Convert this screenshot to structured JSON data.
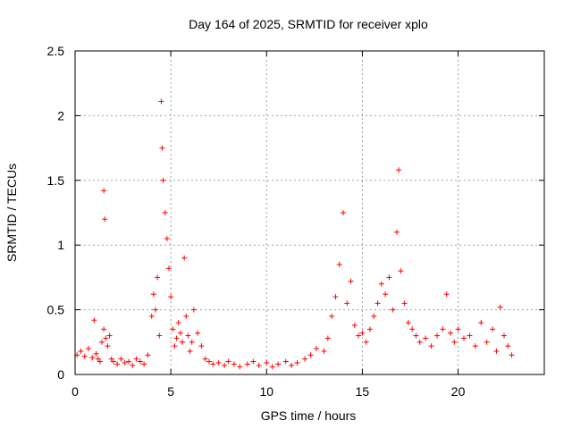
{
  "chart_data": {
    "type": "scatter",
    "title": "Day 164 of 2025, SRMTID for receiver xplo",
    "xlabel": "GPS time / hours",
    "ylabel": "SRMTID / TECUs",
    "xlim": [
      0,
      24.5
    ],
    "ylim": [
      0,
      2.5
    ],
    "xticks": [
      0,
      5,
      10,
      15,
      20
    ],
    "xtick_labels": [
      "0",
      "5",
      "10",
      "15",
      "20"
    ],
    "yticks": [
      0,
      0.5,
      1,
      1.5,
      2,
      2.5
    ],
    "ytick_labels": [
      "0",
      "0.5",
      "1",
      "1.5",
      "2",
      "2.5"
    ],
    "grid": true,
    "marker": "+",
    "series": [
      {
        "name": "SRMTID",
        "color": "#ff0000",
        "x": [
          0.1,
          0.3,
          0.5,
          0.7,
          0.9,
          1.0,
          1.1,
          1.2,
          1.3,
          1.4,
          1.5,
          1.5,
          1.55,
          1.6,
          1.7,
          1.8,
          1.9,
          2.0,
          2.2,
          2.4,
          2.6,
          2.8,
          3.0,
          3.2,
          3.4,
          3.6,
          3.8,
          4.0,
          4.1,
          4.2,
          4.3,
          4.4,
          4.5,
          4.55,
          4.6,
          4.7,
          4.8,
          4.9,
          5.0,
          5.1,
          5.2,
          5.3,
          5.4,
          5.5,
          5.6,
          5.7,
          5.8,
          5.9,
          6.0,
          6.1,
          6.2,
          6.4,
          6.6,
          6.8,
          7.0,
          7.2,
          7.5,
          7.8,
          8.0,
          8.3,
          8.6,
          9.0,
          9.3,
          9.6,
          10.0,
          10.3,
          10.6,
          11.0,
          11.3,
          11.6,
          12.0,
          12.3,
          12.6,
          13.0,
          13.2,
          13.4,
          13.6,
          13.8,
          14.0,
          14.2,
          14.4,
          14.6,
          14.8,
          15.0,
          15.2,
          15.4,
          15.6,
          15.8,
          16.0,
          16.2,
          16.4,
          16.6,
          16.8,
          16.9,
          17.0,
          17.2,
          17.4,
          17.6,
          17.8,
          18.0,
          18.3,
          18.6,
          18.9,
          19.2,
          19.4,
          19.6,
          19.8,
          20.0,
          20.3,
          20.6,
          20.9,
          21.2,
          21.5,
          21.8,
          22.0,
          22.2,
          22.4,
          22.6,
          22.8
        ],
        "y": [
          0.15,
          0.18,
          0.14,
          0.2,
          0.13,
          0.42,
          0.16,
          0.12,
          0.1,
          0.25,
          1.42,
          0.35,
          1.2,
          0.28,
          0.22,
          0.3,
          0.12,
          0.1,
          0.08,
          0.12,
          0.09,
          0.1,
          0.07,
          0.12,
          0.1,
          0.08,
          0.15,
          0.45,
          0.62,
          0.5,
          0.75,
          0.3,
          2.11,
          1.75,
          1.5,
          1.25,
          1.05,
          0.82,
          0.6,
          0.35,
          0.22,
          0.28,
          0.4,
          0.32,
          0.25,
          0.9,
          0.45,
          0.3,
          0.18,
          0.25,
          0.5,
          0.32,
          0.22,
          0.12,
          0.1,
          0.08,
          0.09,
          0.07,
          0.1,
          0.08,
          0.06,
          0.08,
          0.1,
          0.07,
          0.09,
          0.06,
          0.08,
          0.1,
          0.07,
          0.09,
          0.12,
          0.15,
          0.2,
          0.18,
          0.28,
          0.45,
          0.6,
          0.85,
          1.25,
          0.55,
          0.72,
          0.38,
          0.3,
          0.32,
          0.25,
          0.35,
          0.45,
          0.55,
          0.7,
          0.62,
          0.75,
          0.5,
          1.1,
          1.58,
          0.8,
          0.55,
          0.4,
          0.35,
          0.3,
          0.25,
          0.28,
          0.22,
          0.3,
          0.35,
          0.62,
          0.32,
          0.25,
          0.35,
          0.28,
          0.3,
          0.22,
          0.4,
          0.25,
          0.35,
          0.18,
          0.52,
          0.3,
          0.22,
          0.15
        ]
      }
    ]
  }
}
